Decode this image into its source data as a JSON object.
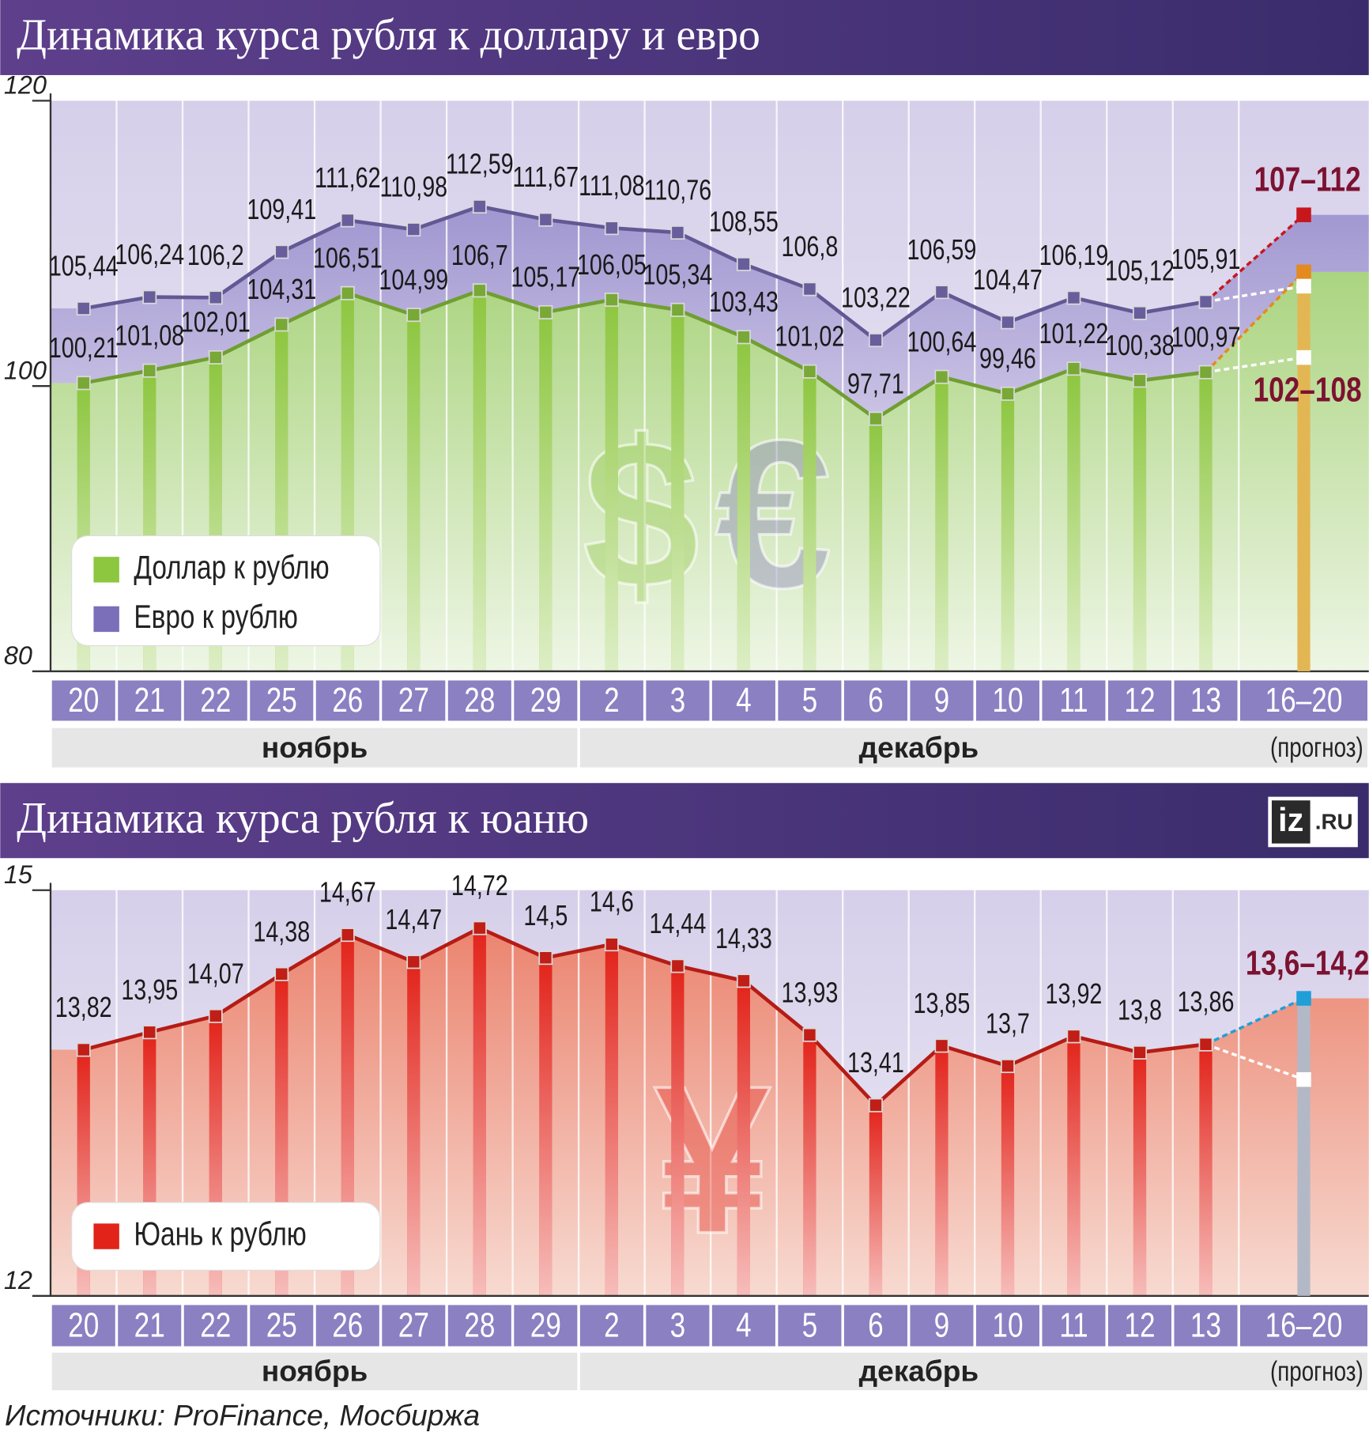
{
  "chart_data": [
    {
      "type": "line",
      "title": "Динамика курса рубля к доллару и евро",
      "categories": [
        "20",
        "21",
        "22",
        "25",
        "26",
        "27",
        "28",
        "29",
        "2",
        "3",
        "4",
        "5",
        "6",
        "9",
        "10",
        "11",
        "12",
        "13",
        "16–20"
      ],
      "months": [
        "ноябрь",
        "декабрь"
      ],
      "note": "(прогноз)",
      "watermarks": [
        "$",
        "€"
      ],
      "ylim": [
        80,
        120
      ],
      "yticks": [
        80,
        100,
        120
      ],
      "series": [
        {
          "name": "Доллар к рублю",
          "color": "#8dc63f",
          "values": [
            100.21,
            101.08,
            102.01,
            104.31,
            106.51,
            104.99,
            106.7,
            105.17,
            106.05,
            105.34,
            103.43,
            101.02,
            97.71,
            100.64,
            99.46,
            101.22,
            100.38,
            100.97,
            null
          ],
          "value_labels": [
            "100,21",
            "101,08",
            "102,01",
            "104,31",
            "106,51",
            "104,99",
            "106,7",
            "105,17",
            "106,05",
            "105,34",
            "103,43",
            "101,02",
            "97,71",
            "100,64",
            "99,46",
            "101,22",
            "100,38",
            "100,97",
            null
          ],
          "forecast": {
            "low": 102,
            "high": 108,
            "label": "102–108",
            "color": "#e48a1e",
            "bar_color": "#e3b654"
          }
        },
        {
          "name": "Евро к рублю",
          "color": "#7a6fb8",
          "values": [
            105.44,
            106.24,
            106.2,
            109.41,
            111.62,
            110.98,
            112.59,
            111.67,
            111.08,
            110.76,
            108.55,
            106.8,
            103.22,
            106.59,
            104.47,
            106.19,
            105.12,
            105.91,
            null
          ],
          "value_labels": [
            "105,44",
            "106,24",
            "106,2",
            "109,41",
            "111,62",
            "110,98",
            "112,59",
            "111,67",
            "111,08",
            "110,76",
            "108,55",
            "106,8",
            "103,22",
            "106,59",
            "104,47",
            "106,19",
            "105,12",
            "105,91",
            null
          ],
          "forecast": {
            "low": 107,
            "high": 112,
            "label": "107–112",
            "color": "#c8161d"
          }
        }
      ]
    },
    {
      "type": "line",
      "title": "Динамика курса рубля к юаню",
      "categories": [
        "20",
        "21",
        "22",
        "25",
        "26",
        "27",
        "28",
        "29",
        "2",
        "3",
        "4",
        "5",
        "6",
        "9",
        "10",
        "11",
        "12",
        "13",
        "16–20"
      ],
      "months": [
        "ноябрь",
        "декабрь"
      ],
      "note": "(прогноз)",
      "watermarks": [
        "¥"
      ],
      "ylim": [
        12,
        15
      ],
      "yticks": [
        12,
        15
      ],
      "series": [
        {
          "name": "Юань к рублю",
          "color": "#e2231a",
          "values": [
            13.82,
            13.95,
            14.07,
            14.38,
            14.67,
            14.47,
            14.72,
            14.5,
            14.6,
            14.44,
            14.33,
            13.93,
            13.41,
            13.85,
            13.7,
            13.92,
            13.8,
            13.86,
            null
          ],
          "value_labels": [
            "13,82",
            "13,95",
            "14,07",
            "14,38",
            "14,67",
            "14,47",
            "14,72",
            "14,5",
            "14,6",
            "14,44",
            "14,33",
            "13,93",
            "13,41",
            "13,85",
            "13,7",
            "13,92",
            "13,8",
            "13,86",
            null
          ],
          "forecast": {
            "low": 13.6,
            "high": 14.2,
            "label": "13,6–14,2",
            "color": "#1f9fd8",
            "bar_color": "#b3b8c6"
          }
        }
      ]
    }
  ],
  "logo": {
    "mark": "iz",
    "domain": ".RU"
  },
  "source": "Источники: ProFinance, Мосбиржа"
}
